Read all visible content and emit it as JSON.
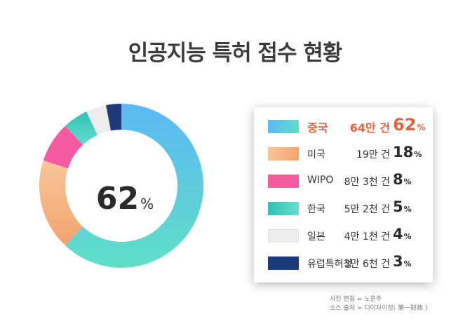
{
  "title": "인공지능 특허 접수 현황",
  "chart_data": {
    "type": "pie",
    "title": "인공지능 특허 접수 현황",
    "center_value": "62",
    "center_unit": "%",
    "slices": [
      {
        "label": "중국",
        "count": "64만 건",
        "value": 62,
        "value_text": "62",
        "color_start": "#5bb8f5",
        "color_end": "#5fdfc6"
      },
      {
        "label": "미국",
        "count": "19만 건",
        "value": 18,
        "value_text": "18",
        "color_start": "#f7c59a",
        "color_end": "#f3a36f"
      },
      {
        "label": "WIPO",
        "count": "8만 3천 건",
        "value": 8,
        "value_text": "8",
        "color_start": "#f35aa0",
        "color_end": "#f35aa0"
      },
      {
        "label": "한국",
        "count": "5만 2천 건",
        "value": 5,
        "value_text": "5",
        "color_start": "#2fc1b3",
        "color_end": "#66ddd0"
      },
      {
        "label": "일본",
        "count": "4만 1천 건",
        "value": 4,
        "value_text": "4",
        "color_start": "#ececec",
        "color_end": "#ececec"
      },
      {
        "label": "유럽특허청",
        "count": "3만 6천 건",
        "value": 3,
        "value_text": "3",
        "color_start": "#1d3a7a",
        "color_end": "#1d3a7a"
      }
    ],
    "percent_unit": "%",
    "highlight_color": "#e4643f"
  },
  "credits": {
    "line1": "사진 편집 = 노훈주",
    "line2": "소스 출처 = 디이차이정( 第一財政 )"
  }
}
